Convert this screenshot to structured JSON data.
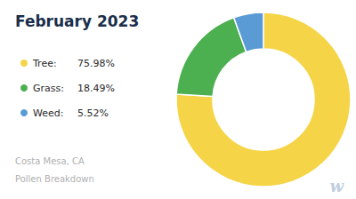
{
  "chart_data": {
    "type": "pie",
    "title": "February 2023",
    "subtitle": [
      "Costa Mesa, CA",
      "Pollen Breakdown"
    ],
    "categories": [
      "Tree:",
      "Grass:",
      "Weed:"
    ],
    "values": [
      75.98,
      18.49,
      5.52
    ],
    "value_labels": [
      "75.98%",
      "18.49%",
      "5.52%"
    ],
    "colors": [
      "#F5D547",
      "#4CAF50",
      "#5B9BD5"
    ],
    "legend": "left",
    "annotations": [
      "w"
    ]
  }
}
